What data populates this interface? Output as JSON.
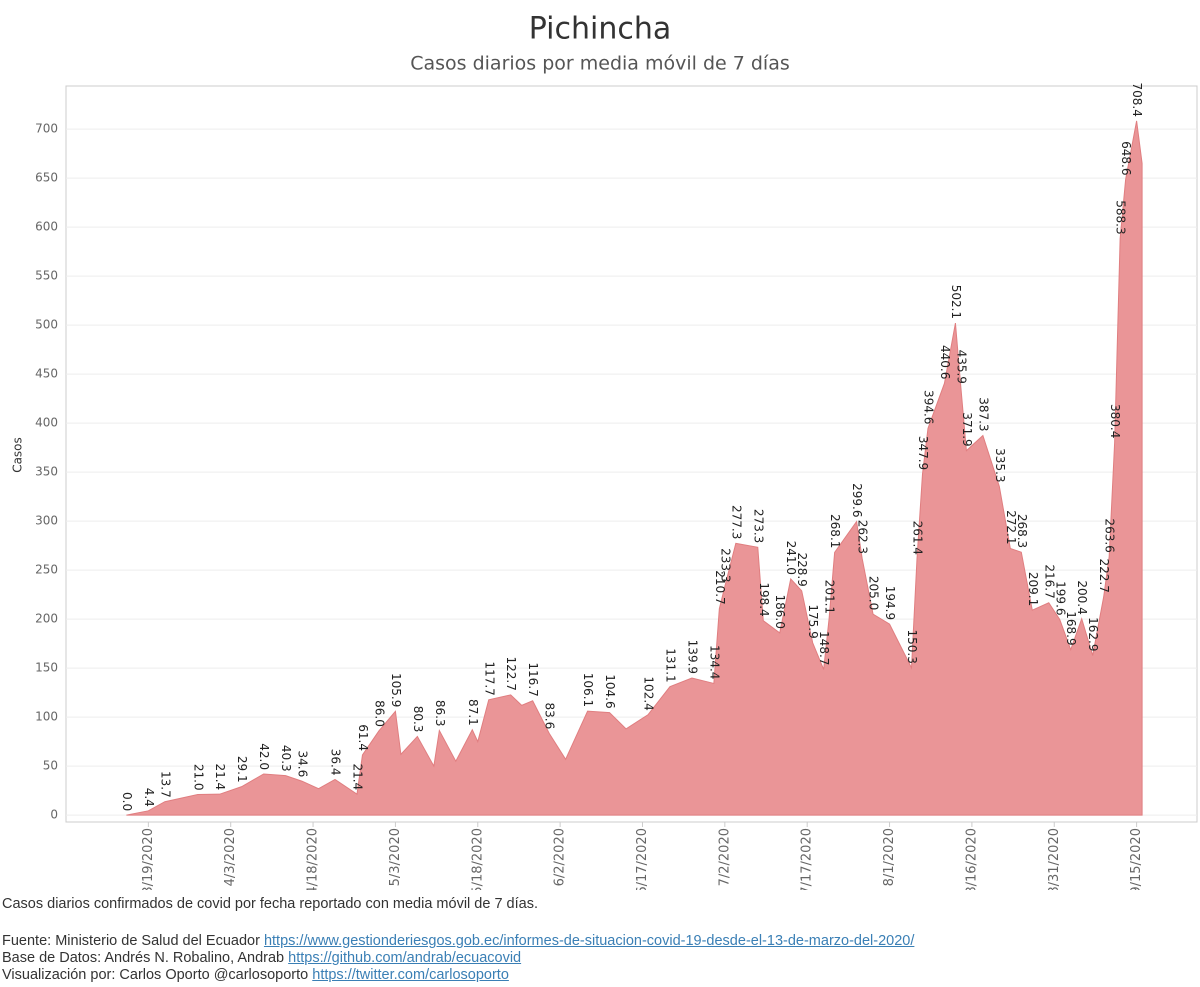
{
  "chart_data": {
    "type": "area",
    "title": "Pichincha",
    "subtitle": "Casos diarios por media móvil de 7 días",
    "y_label": "Casos",
    "color": "#ea9597",
    "line_color": "#e07e80",
    "grid": true,
    "x": [
      "3/15/2020",
      "3/19/2020",
      "3/22/2020",
      "3/28/2020",
      "4/1/2020",
      "4/5/2020",
      "4/9/2020",
      "4/13/2020",
      "4/16/2020",
      "4/19/2020",
      "4/22/2020",
      "4/26/2020",
      "4/27/2020",
      "4/30/2020",
      "5/3/2020",
      "5/4/2020",
      "5/7/2020",
      "5/10/2020",
      "5/11/2020",
      "5/14/2020",
      "5/17/2020",
      "5/18/2020",
      "5/20/2020",
      "5/24/2020",
      "5/26/2020",
      "5/28/2020",
      "5/31/2020",
      "6/3/2020",
      "6/7/2020",
      "6/11/2020",
      "6/14/2020",
      "6/18/2020",
      "6/22/2020",
      "6/26/2020",
      "6/30/2020",
      "7/1/2020",
      "7/2/2020",
      "7/4/2020",
      "7/8/2020",
      "7/9/2020",
      "7/12/2020",
      "7/14/2020",
      "7/16/2020",
      "7/18/2020",
      "7/20/2020",
      "7/21/2020",
      "7/22/2020",
      "7/26/2020",
      "7/27/2020",
      "7/29/2020",
      "8/1/2020",
      "8/5/2020",
      "8/6/2020",
      "8/7/2020",
      "8/8/2020",
      "8/11/2020",
      "8/13/2020",
      "8/14/2020",
      "8/15/2020",
      "8/18/2020",
      "8/21/2020",
      "8/23/2020",
      "8/25/2020",
      "8/27/2020",
      "8/30/2020",
      "9/1/2020",
      "9/3/2020",
      "9/5/2020",
      "9/7/2020",
      "9/9/2020",
      "9/10/2020",
      "9/11/2020",
      "9/12/2020",
      "9/13/2020",
      "9/15/2020",
      "9/16/2020"
    ],
    "values": [
      0,
      4.4,
      13.7,
      21,
      21.4,
      29.1,
      42,
      40.3,
      34.6,
      27,
      36.4,
      21.4,
      61.4,
      86,
      105.9,
      62,
      80.3,
      50,
      86.3,
      55,
      87.1,
      75,
      117.7,
      122.7,
      112,
      116.7,
      83.6,
      57,
      106.1,
      104.6,
      88,
      102.4,
      131.1,
      139.9,
      134.4,
      210.7,
      233.3,
      277.3,
      273.3,
      198.4,
      186,
      241,
      228.9,
      175.9,
      148.7,
      201.1,
      268.1,
      299.6,
      262.3,
      205,
      194.9,
      150.3,
      261.4,
      347.9,
      394.6,
      440.6,
      502.1,
      435.9,
      371.9,
      387.3,
      335.3,
      272.1,
      268.3,
      209.1,
      216.7,
      199.6,
      168.9,
      200.4,
      162.9,
      222.7,
      263.6,
      380.4,
      588.3,
      648.6,
      708.4,
      665
    ],
    "value_labels": [
      "0.0",
      "4.4",
      "13.7",
      "21.0",
      "21.4",
      "29.1",
      "42.0",
      "40.3",
      "34.6",
      null,
      "36.4",
      "21.4",
      "61.4",
      "86.0",
      "105.9",
      null,
      "80.3",
      null,
      "86.3",
      null,
      "87.1",
      null,
      "117.7",
      "122.7",
      null,
      "116.7",
      "83.6",
      null,
      "106.1",
      "104.6",
      null,
      "102.4",
      "131.1",
      "139.9",
      "134.4",
      "210.7",
      "233.3",
      "277.3",
      "273.3",
      "198.4",
      "186.0",
      "241.0",
      "228.9",
      "175.9",
      "148.7",
      "201.1",
      "268.1",
      "299.6",
      "262.3",
      "205.0",
      "194.9",
      "150.3",
      "261.4",
      "347.9",
      "394.6",
      "440.6",
      "502.1",
      "435.9",
      "371.9",
      "387.3",
      "335.3",
      "272.1",
      "268.3",
      "209.1",
      "216.7",
      "199.6",
      "168.9",
      "200.4",
      "162.9",
      "222.7",
      "263.6",
      "380.4",
      "588.3",
      "648.6",
      "708.4",
      null
    ],
    "xlim": [
      "3/4/2020",
      "9/26/2020"
    ],
    "xticks": [
      "3/19/2020",
      "4/3/2020",
      "4/18/2020",
      "5/3/2020",
      "5/18/2020",
      "6/2/2020",
      "6/17/2020",
      "7/2/2020",
      "7/17/2020",
      "8/1/2020",
      "8/16/2020",
      "8/31/2020",
      "9/15/2020"
    ],
    "ylim": [
      -7,
      744
    ],
    "yticks": [
      0,
      50,
      100,
      150,
      200,
      250,
      300,
      350,
      400,
      450,
      500,
      550,
      600,
      650,
      700
    ]
  },
  "footer": {
    "note": "Casos diarios confirmados de covid por fecha reportado con media móvil de 7 días.",
    "source_text": "Fuente: Ministerio de Salud del Ecuador",
    "source_link": "https://www.gestionderiesgos.gob.ec/informes-de-situacion-covid-19-desde-el-13-de-marzo-del-2020/",
    "database_text": "Base de Datos: Andrés N. Robalino, Andrab",
    "database_link": "https://github.com/andrab/ecuacovid",
    "viz_text": "Visualización por: Carlos Oporto @carlosoporto",
    "viz_link": "https://twitter.com/carlosoporto"
  }
}
